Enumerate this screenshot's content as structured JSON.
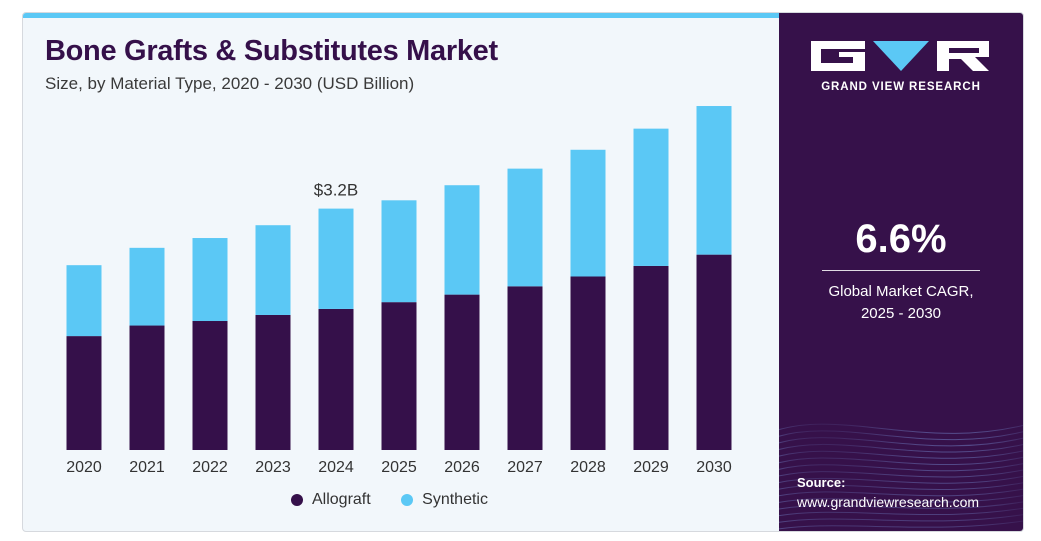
{
  "header": {
    "title": "Bone Grafts & Substitutes Market",
    "subtitle": "Size, by Material Type, 2020 - 2030 (USD Billion)"
  },
  "chart_data": {
    "type": "bar",
    "stacked": true,
    "categories": [
      "2020",
      "2021",
      "2022",
      "2023",
      "2024",
      "2025",
      "2026",
      "2027",
      "2028",
      "2029",
      "2030"
    ],
    "series": [
      {
        "name": "Allograft",
        "color": "#35104a",
        "values": [
          1.51,
          1.65,
          1.71,
          1.79,
          1.87,
          1.96,
          2.06,
          2.17,
          2.3,
          2.44,
          2.59
        ]
      },
      {
        "name": "Synthetic",
        "color": "#5bc8f5",
        "values": [
          0.94,
          1.03,
          1.1,
          1.19,
          1.33,
          1.35,
          1.45,
          1.56,
          1.68,
          1.82,
          1.97
        ]
      }
    ],
    "annotations": [
      {
        "category": "2024",
        "text": "$3.2B"
      }
    ],
    "ylim": [
      0,
      4.6
    ],
    "grid": false,
    "legend_position": "bottom"
  },
  "panel": {
    "brand": "GRAND VIEW RESEARCH",
    "logo_icon": "grand-view-research-logo",
    "cagr_value": "6.6%",
    "cagr_line1": "Global Market CAGR,",
    "cagr_line2": "2025 - 2030",
    "source_label": "Source:",
    "source_url": "www.grandviewresearch.com"
  }
}
